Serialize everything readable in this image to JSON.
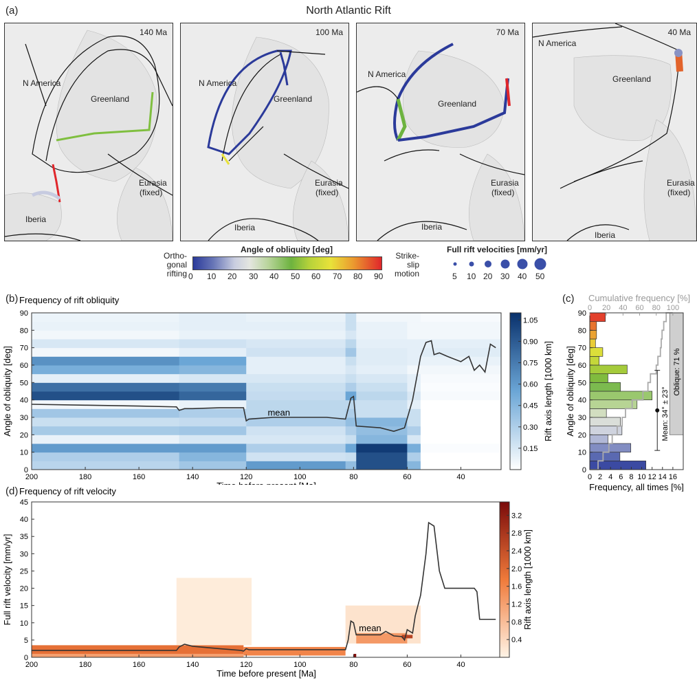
{
  "figure_title": "North Atlantic Rift",
  "panel_labels": {
    "a": "(a)",
    "b": "(b)",
    "c": "(c)",
    "d": "(d)"
  },
  "maps": [
    {
      "age": "140 Ma",
      "labels": {
        "na": "N America",
        "gl": "Greenland",
        "eu": "Eurasia",
        "eu2": "(fixed)",
        "ib": "Iberia"
      }
    },
    {
      "age": "100 Ma",
      "labels": {
        "na": "N America",
        "gl": "Greenland",
        "eu": "Eurasia",
        "eu2": "(fixed)",
        "ib": "Iberia"
      }
    },
    {
      "age": "70 Ma",
      "labels": {
        "na": "N America",
        "gl": "Greenland",
        "eu": "Eurasia",
        "eu2": "(fixed)",
        "ib": "Iberia"
      }
    },
    {
      "age": "40 Ma",
      "labels": {
        "na": "N America",
        "gl": "Greenland",
        "eu": "Eurasia",
        "eu2": "(fixed)",
        "ib": "Iberia"
      }
    }
  ],
  "colorbar_obliquity": {
    "title": "Angle of obliquity [deg]",
    "left_label": [
      "Ortho-",
      "gonal",
      "rifting"
    ],
    "right_label": [
      "Strike-",
      "slip",
      "motion"
    ],
    "ticks": [
      "0",
      "10",
      "20",
      "30",
      "40",
      "50",
      "60",
      "70",
      "80",
      "90"
    ]
  },
  "velocity_legend": {
    "title": "Full rift velocities [mm/yr]",
    "items": [
      "5",
      "10",
      "20",
      "30",
      "40",
      "50"
    ]
  },
  "colors": {
    "blue_dark": "#08306b",
    "blue_light": "#deebf7",
    "obl_0": "#2b3a9a",
    "obl_20": "#d9dde6",
    "obl_50": "#6db33f",
    "obl_70": "#e8e23a",
    "obl_90": "#e0262b",
    "orange_dark": "#8b0000",
    "orange_light": "#fff2e0"
  },
  "chart_data": [
    {
      "id": "b",
      "type": "heatmap",
      "title": "Frequency of rift obliquity",
      "xlabel": "Time before present [Ma]",
      "ylabel": "Angle of obliquity [deg]",
      "xlim": [
        200,
        25
      ],
      "ylim": [
        0,
        90
      ],
      "xticks": [
        "200",
        "180",
        "160",
        "140",
        "120",
        "100",
        "80",
        "60",
        "40"
      ],
      "yticks": [
        "0",
        "10",
        "20",
        "30",
        "40",
        "50",
        "60",
        "70",
        "80",
        "90"
      ],
      "colorbar": {
        "label": "Rift axis length [1000 km]",
        "ticks": [
          "0.15",
          "0.30",
          "0.45",
          "0.60",
          "0.75",
          "0.90",
          "1.05"
        ],
        "range": [
          0,
          1.1
        ]
      },
      "annotation": "mean",
      "mean_line": {
        "x": [
          200,
          180,
          160,
          146,
          145,
          143,
          140,
          130,
          121,
          120,
          119,
          110,
          100,
          90,
          83,
          81,
          80,
          79,
          70,
          65,
          61,
          58,
          55,
          53,
          51,
          50,
          48,
          45,
          40,
          37,
          35,
          33,
          31,
          29,
          27
        ],
        "y": [
          37.5,
          37,
          36.5,
          36,
          34,
          35,
          35,
          35.5,
          35.5,
          28,
          29,
          30,
          30,
          30,
          29,
          41,
          42,
          25,
          24,
          22,
          24,
          40,
          65,
          73,
          74,
          66,
          67,
          65,
          62,
          65,
          57,
          60,
          56,
          72,
          70
        ]
      },
      "column_groups": [
        {
          "x": [
            200,
            145
          ],
          "profile": [
            0.26,
            0.3,
            0.6,
            0.08,
            0.33,
            0.2,
            0.35,
            0.05,
            0.95,
            0.8,
            0.1,
            0.5,
            0.65,
            0.05,
            0.15,
            0.05,
            0.08,
            0.07
          ]
        },
        {
          "x": [
            145,
            120
          ],
          "profile": [
            0.35,
            0.45,
            0.6,
            0.15,
            0.35,
            0.22,
            0.3,
            0.08,
            0.85,
            0.75,
            0.15,
            0.45,
            0.55,
            0.1,
            0.18,
            0.08,
            0.1,
            0.1
          ]
        },
        {
          "x": [
            120,
            83
          ],
          "profile": [
            0.6,
            0.18,
            0.3,
            0.15,
            0.18,
            0.3,
            0.25,
            0.25,
            0.22,
            0.2,
            0.15,
            0.1,
            0.1,
            0.18,
            0.15,
            0.08,
            0.1,
            0.08
          ]
        },
        {
          "x": [
            83,
            79
          ],
          "profile": [
            0.4,
            0.2,
            0.55,
            0.2,
            0.3,
            0.4,
            0.3,
            0.25,
            0.55,
            0.3,
            0.2,
            0.15,
            0.2,
            0.35,
            0.25,
            0.15,
            0.2,
            0.2
          ]
        },
        {
          "x": [
            79,
            60
          ],
          "profile": [
            0.95,
            0.95,
            1.05,
            0.45,
            0.4,
            0.45,
            0.2,
            0.2,
            0.25,
            0.2,
            0.15,
            0.1,
            0.12,
            0.12,
            0.1,
            0.08,
            0.08,
            0.05
          ]
        },
        {
          "x": [
            60,
            55
          ],
          "profile": [
            0.45,
            0.3,
            0.5,
            0.15,
            0.3,
            0.2,
            0.2,
            0.1,
            0.15,
            0.1,
            0.1,
            0.05,
            0.1,
            0.1,
            0.1,
            0.05,
            0.05,
            0.05
          ]
        },
        {
          "x": [
            55,
            25
          ],
          "profile": [
            0.0,
            0.0,
            0.02,
            0.0,
            0.0,
            0.0,
            0.0,
            0.0,
            0.03,
            0.02,
            0.03,
            0.05,
            0.08,
            0.12,
            0.1,
            0.05,
            0.05,
            0.03
          ]
        }
      ]
    },
    {
      "id": "c",
      "type": "bar",
      "orientation": "horizontal",
      "xlabel": "Frequency, all times [%]",
      "top_xlabel": "Cumulative frequency [%]",
      "ylabel": "Angle of obliquity [deg]",
      "xlim": [
        0,
        18
      ],
      "ylim": [
        0,
        90
      ],
      "xticks": [
        "0",
        "2",
        "4",
        "6",
        "8",
        "10",
        "12",
        "14",
        "16"
      ],
      "top_xticks": [
        "0",
        "20",
        "40",
        "60",
        "80",
        "100"
      ],
      "yticks": [
        "0",
        "10",
        "20",
        "30",
        "40",
        "50",
        "60",
        "70",
        "80",
        "90"
      ],
      "bins": [
        0,
        5,
        10,
        15,
        20,
        25,
        30,
        35,
        40,
        45,
        50,
        55,
        60,
        65,
        70,
        75,
        80,
        85
      ],
      "values": [
        10.8,
        5.8,
        7.9,
        3.5,
        6.2,
        5.9,
        3.2,
        9.1,
        12.0,
        5.9,
        3.5,
        7.2,
        1.8,
        2.5,
        1.1,
        1.3,
        1.3,
        3.0
      ],
      "cumulative": [
        0,
        10,
        16,
        23,
        27,
        33,
        39,
        43,
        51,
        64,
        70,
        73,
        80,
        82,
        85,
        86,
        87,
        89,
        92,
        100
      ],
      "mean_label": "Mean: 34° ± 23°",
      "mean": 34,
      "std": 23,
      "oblique_label": "Oblique: 71 %"
    },
    {
      "id": "d",
      "type": "heatmap",
      "title": "Frequency of rift velocity",
      "xlabel": "Time before present [Ma]",
      "ylabel": "Full rift velocity [mm/yr]",
      "xlim": [
        200,
        25
      ],
      "ylim": [
        0,
        45
      ],
      "xticks": [
        "200",
        "180",
        "160",
        "140",
        "120",
        "100",
        "80",
        "60",
        "40"
      ],
      "yticks": [
        "0",
        "5",
        "10",
        "15",
        "20",
        "25",
        "30",
        "35",
        "40",
        "45"
      ],
      "colorbar": {
        "label": "Rift axis length [1000 km]",
        "ticks": [
          "0.4",
          "0.8",
          "1.2",
          "1.6",
          "2.0",
          "2.4",
          "2.8",
          "3.2"
        ],
        "range": [
          0,
          3.5
        ]
      },
      "annotation": "mean",
      "mean_line": {
        "x": [
          200,
          160,
          146,
          145,
          143,
          140,
          130,
          122,
          121,
          120,
          119,
          110,
          100,
          90,
          83,
          82,
          81,
          80,
          79,
          70,
          68,
          65,
          62,
          61,
          60,
          58,
          57,
          55,
          53,
          52,
          50,
          48,
          46,
          40,
          35,
          34,
          33,
          30,
          27
        ],
        "y": [
          2,
          2,
          2,
          3,
          3.8,
          3.2,
          2.5,
          2,
          1.8,
          2.5,
          2.2,
          2.2,
          2.2,
          2.2,
          2.2,
          5,
          10.5,
          10,
          6.5,
          6.5,
          7.5,
          6.2,
          6,
          5,
          8,
          7,
          12,
          18,
          30,
          39,
          38,
          25,
          20,
          20,
          20,
          19,
          11,
          11,
          11
        ]
      },
      "blocks": [
        {
          "x": [
            200,
            121
          ],
          "y": [
            1,
            3.5
          ],
          "v": 1.9
        },
        {
          "x": [
            200,
            121
          ],
          "y": [
            0,
            1
          ],
          "v": 1.2
        },
        {
          "x": [
            121,
            83
          ],
          "y": [
            0.5,
            3
          ],
          "v": 1.6
        },
        {
          "x": [
            146,
            118
          ],
          "y": [
            3.5,
            23
          ],
          "v": 0.12
        },
        {
          "x": [
            83,
            55
          ],
          "y": [
            4,
            15
          ],
          "v": 0.25
        },
        {
          "x": [
            79,
            60
          ],
          "y": [
            4,
            7
          ],
          "v": 1.3
        },
        {
          "x": [
            80,
            79
          ],
          "y": [
            0,
            1
          ],
          "v": 3.4
        },
        {
          "x": [
            62,
            58
          ],
          "y": [
            5.5,
            6.5
          ],
          "v": 2.6
        }
      ]
    }
  ]
}
